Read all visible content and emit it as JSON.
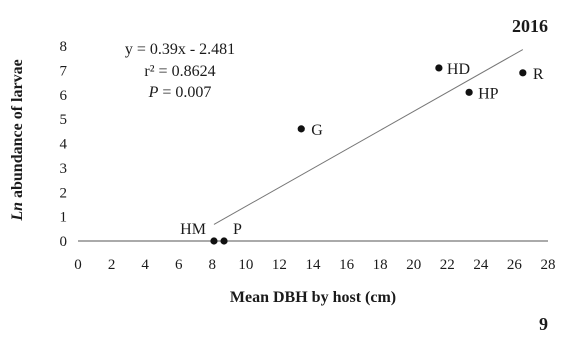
{
  "chart_data": {
    "type": "scatter",
    "year_label": "2016",
    "panel_number": "9",
    "xlabel": "Mean DBH by host (cm)",
    "ylabel_prefix": "Ln",
    "ylabel_rest": " abundance of larvae",
    "xlim": [
      0,
      28
    ],
    "ylim": [
      0,
      8
    ],
    "xticks": [
      0,
      2,
      4,
      6,
      8,
      10,
      12,
      14,
      16,
      18,
      20,
      22,
      24,
      26,
      28
    ],
    "yticks": [
      0,
      1,
      2,
      3,
      4,
      5,
      6,
      7,
      8
    ],
    "points": [
      {
        "label": "HM",
        "x": 8.1,
        "y": 0.0
      },
      {
        "label": "P",
        "x": 8.7,
        "y": 0.0
      },
      {
        "label": "G",
        "x": 13.3,
        "y": 4.6
      },
      {
        "label": "HD",
        "x": 21.5,
        "y": 7.1
      },
      {
        "label": "HP",
        "x": 23.3,
        "y": 6.1
      },
      {
        "label": "R",
        "x": 26.5,
        "y": 6.9
      }
    ],
    "trendline": {
      "equation": "y = 0.39x - 2.481",
      "r2_text": "r² = 0.8624",
      "p_prefix": "P",
      "p_rest": " = 0.007",
      "slope": 0.39,
      "intercept": -2.481,
      "x_range": [
        8.1,
        26.5
      ]
    }
  }
}
